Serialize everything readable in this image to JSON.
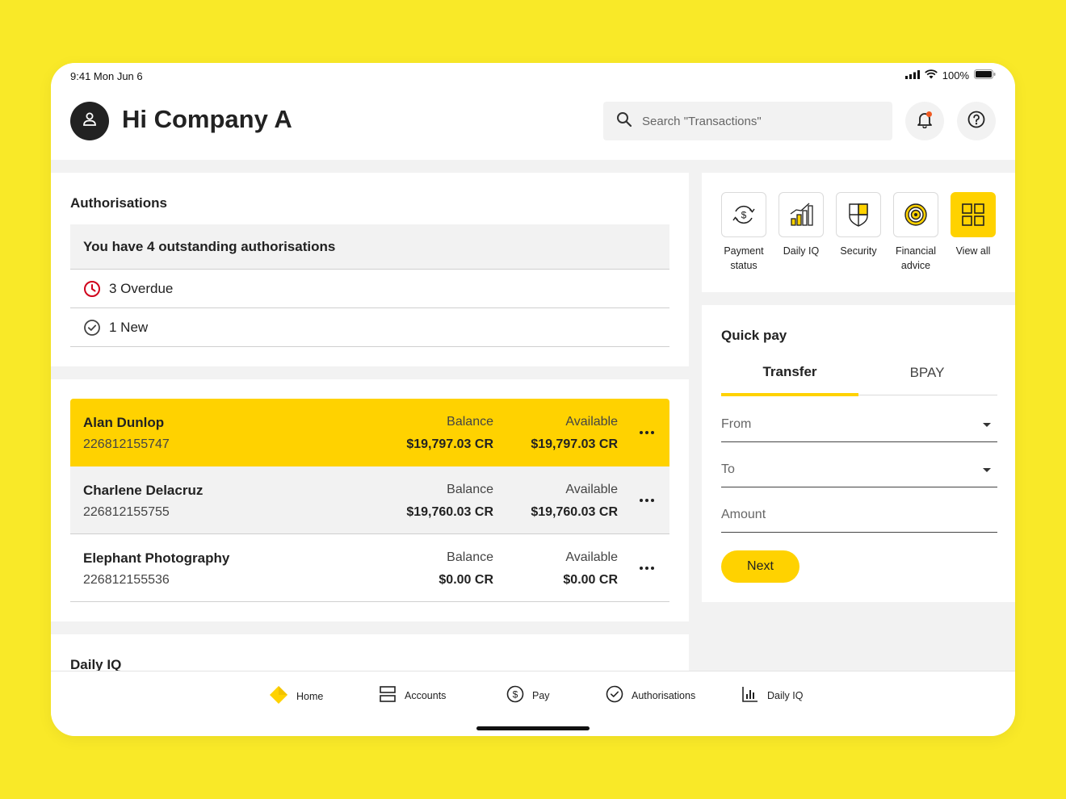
{
  "status_bar": {
    "time": "9:41  Mon Jun 6",
    "battery": "100%"
  },
  "header": {
    "greeting": "Hi Company A",
    "search_placeholder": "Search \"Transactions\""
  },
  "authorisations": {
    "title": "Authorisations",
    "banner": "You have 4 outstanding authorisations",
    "rows": [
      {
        "label": "3 Overdue",
        "icon": "clock-icon",
        "color": "#D0021B"
      },
      {
        "label": "1 New",
        "icon": "check-circle-icon"
      }
    ]
  },
  "accounts": [
    {
      "name": "Alan Dunlop",
      "number": "226812155747",
      "balance_label": "Balance",
      "balance": "$19,797.03 CR",
      "available_label": "Available",
      "available": "$19,797.03 CR",
      "highlight": "#FFD200"
    },
    {
      "name": "Charlene Delacruz",
      "number": "226812155755",
      "balance_label": "Balance",
      "balance": "$19,760.03 CR",
      "available_label": "Available",
      "available": "$19,760.03 CR",
      "highlight": "#F2F2F2"
    },
    {
      "name": "Elephant Photography",
      "number": "226812155536",
      "balance_label": "Balance",
      "balance": "$0.00 CR",
      "available_label": "Available",
      "available": "$0.00 CR",
      "highlight": "#FFFFFF"
    }
  ],
  "daily_iq_title": "Daily IQ",
  "quick_links": [
    {
      "label": "Payment status",
      "icon": "payment-status-icon"
    },
    {
      "label": "Daily IQ",
      "icon": "chart-bars-icon"
    },
    {
      "label": "Security",
      "icon": "shield-icon"
    },
    {
      "label": "Financial advice",
      "icon": "target-icon"
    },
    {
      "label": "View all",
      "icon": "grid-icon"
    }
  ],
  "quick_pay": {
    "title": "Quick pay",
    "tabs": [
      "Transfer",
      "BPAY"
    ],
    "from_label": "From",
    "to_label": "To",
    "amount_label": "Amount",
    "next_label": "Next"
  },
  "bottom_nav": [
    {
      "label": "Home",
      "icon": "home-diamond-icon"
    },
    {
      "label": "Accounts",
      "icon": "accounts-icon"
    },
    {
      "label": "Pay",
      "icon": "dollar-circle-icon"
    },
    {
      "label": "Authorisations",
      "icon": "check-circle-icon"
    },
    {
      "label": "Daily IQ",
      "icon": "chart-icon"
    }
  ],
  "colors": {
    "brand_yellow": "#FFD200",
    "background_yellow": "#F9E928",
    "overdue_red": "#D0021B",
    "notification_dot": "#F05A22"
  }
}
